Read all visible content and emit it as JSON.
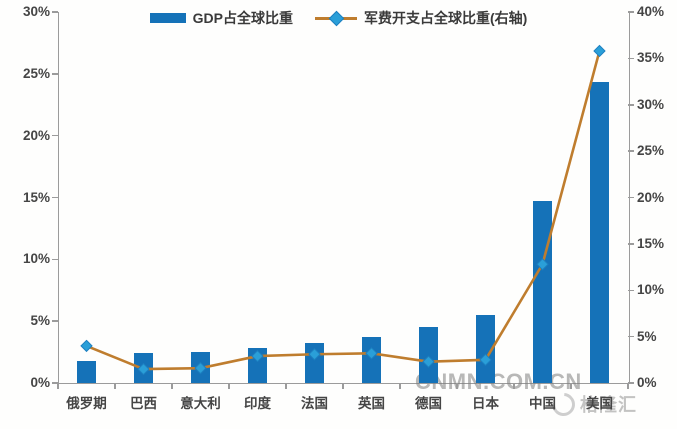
{
  "watermarks": {
    "center": "CNMN.COM.CN",
    "brand": "格隆汇"
  },
  "chart_data": {
    "type": "bar+line combo",
    "title": "",
    "categories": [
      "俄罗期",
      "巴西",
      "意大利",
      "印度",
      "法国",
      "英国",
      "德国",
      "日本",
      "中国",
      "美国"
    ],
    "series": [
      {
        "name": "GDP占全球比重",
        "type": "bar",
        "axis": "left",
        "color": "#1572b8",
        "values": [
          1.8,
          2.4,
          2.5,
          2.8,
          3.2,
          3.7,
          4.5,
          5.5,
          14.7,
          24.3
        ]
      },
      {
        "name": "军费开支占全球比重(右轴)",
        "type": "line",
        "axis": "right",
        "line_color": "#bf7d2e",
        "marker": "diamond",
        "marker_color": "#2a9fd8",
        "values": [
          4.0,
          1.5,
          1.6,
          2.9,
          3.1,
          3.2,
          2.3,
          2.5,
          12.8,
          35.8
        ]
      }
    ],
    "left_axis": {
      "min": 0,
      "max": 30,
      "step": 5,
      "suffix": "%",
      "tick_labels": [
        "0%",
        "5%",
        "10%",
        "15%",
        "20%",
        "25%",
        "30%"
      ]
    },
    "right_axis": {
      "min": 0,
      "max": 40,
      "step": 5,
      "suffix": "%",
      "tick_labels": [
        "0%",
        "5%",
        "10%",
        "15%",
        "20%",
        "25%",
        "30%",
        "35%",
        "40%"
      ]
    },
    "legend_position": "top",
    "grid": false
  }
}
